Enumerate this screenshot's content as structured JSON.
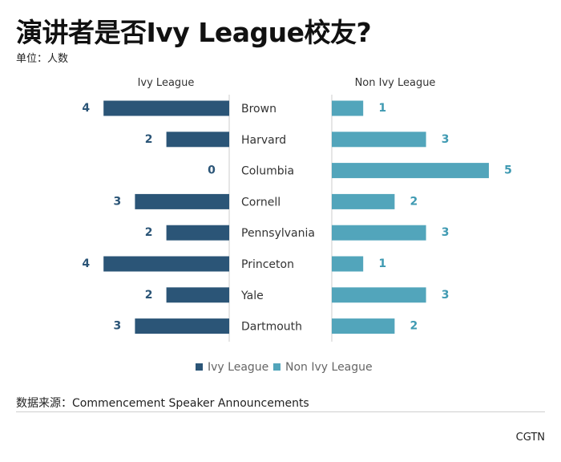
{
  "title": "演讲者是否Ivy League校友?",
  "subtitle": "单位：人数",
  "source": "数据来源：Commencement Speaker Announcements",
  "brand": "CGTN",
  "colors": {
    "ivy": "#2b5577",
    "non_ivy": "#52a5bb",
    "ivy_text": "#2b5577",
    "non_ivy_text": "#3f9ab2",
    "label": "#333333",
    "axis": "#cccccc"
  },
  "chart_data": {
    "type": "bar",
    "orientation": "horizontal-butterfly",
    "categories": [
      "Brown",
      "Harvard",
      "Columbia",
      "Cornell",
      "Pennsylvania",
      "Princeton",
      "Yale",
      "Dartmouth"
    ],
    "series": [
      {
        "name": "Ivy League",
        "values": [
          4,
          2,
          0,
          3,
          2,
          4,
          2,
          3
        ]
      },
      {
        "name": "Non Ivy League",
        "values": [
          1,
          3,
          5,
          2,
          3,
          1,
          3,
          2
        ]
      }
    ],
    "panel_titles": [
      "Ivy League",
      "Non Ivy League"
    ],
    "xlim": [
      0,
      5
    ],
    "legend": {
      "placement": "bottom-center",
      "entries": [
        "Ivy League",
        "Non Ivy League"
      ]
    }
  }
}
